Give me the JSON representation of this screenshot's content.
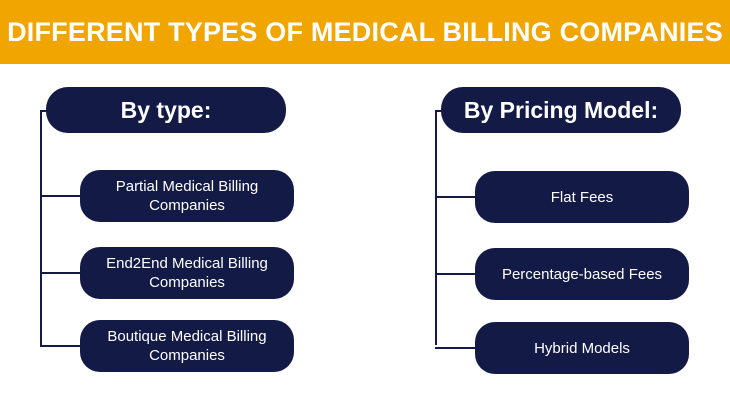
{
  "header": {
    "title": "DIFFERENT TYPES OF MEDICAL BILLING COMPANIES"
  },
  "left": {
    "heading": "By type:",
    "items": [
      "Partial Medical Billing Companies",
      "End2End Medical Billing Companies",
      "Boutique Medical Billing Companies"
    ]
  },
  "right": {
    "heading": "By Pricing Model:",
    "items": [
      "Flat Fees",
      "Percentage-based Fees",
      "Hybrid Models"
    ]
  },
  "colors": {
    "banner": "#f0a500",
    "pill": "#121a45",
    "text": "#ffffff"
  }
}
